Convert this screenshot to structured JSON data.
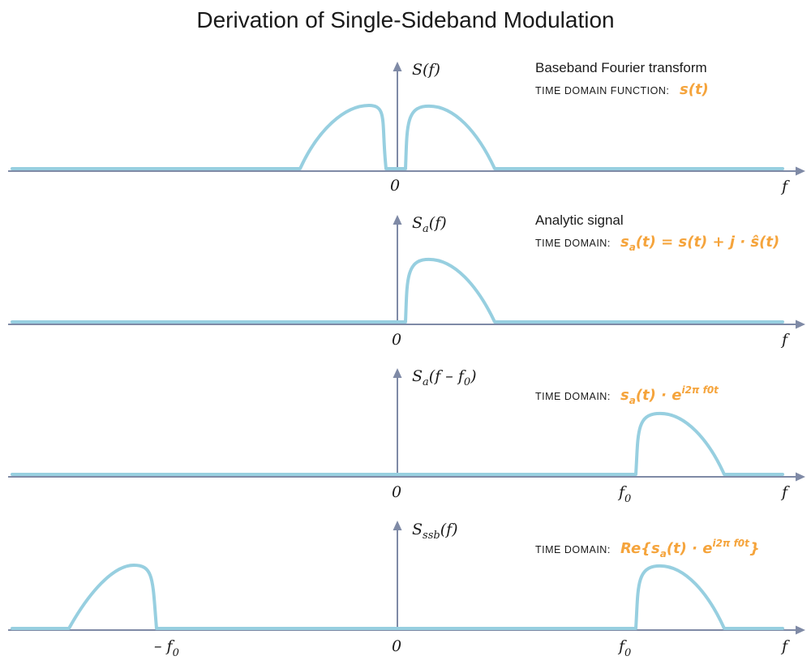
{
  "title": "Derivation of Single-Sideband Modulation",
  "axis": {
    "f_label": "f",
    "zero_label": "0",
    "f0_label": "f",
    "f0_sub": "0",
    "neg_f0_label": "– f",
    "neg_f0_sub": "0"
  },
  "panels": [
    {
      "ylabel": {
        "main": "S(f)",
        "sub": "",
        "rest": ""
      },
      "description": "Baseband Fourier transform",
      "time_domain_label": "TIME DOMAIN FUNCTION:",
      "formula": [
        {
          "t": "s(t)"
        }
      ]
    },
    {
      "ylabel": {
        "main": "S",
        "sub": "a",
        "rest": "(f)"
      },
      "description": "Analytic signal",
      "time_domain_label": "TIME DOMAIN:",
      "formula": [
        {
          "t": "s"
        },
        {
          "t": "a",
          "sub": true
        },
        {
          "t": "(t) = s(t) + j · ŝ(t)"
        }
      ]
    },
    {
      "ylabel": {
        "main": "S",
        "sub": "a",
        "rest": "(f – f",
        "sub2": "0",
        "rest2": ")"
      },
      "description": "",
      "time_domain_label": "TIME DOMAIN:",
      "formula": [
        {
          "t": "s"
        },
        {
          "t": "a",
          "sub": true
        },
        {
          "t": "(t) · e"
        },
        {
          "t": "i2π f0t",
          "sup": true
        }
      ]
    },
    {
      "ylabel": {
        "main": "S",
        "sub": "ssb",
        "rest": "(f)"
      },
      "description": "",
      "time_domain_label": "TIME DOMAIN:",
      "formula": [
        {
          "t": "Re{s"
        },
        {
          "t": "a",
          "sub": true
        },
        {
          "t": "(t) · e"
        },
        {
          "t": "i2π f0t",
          "sup": true
        },
        {
          "t": "}"
        }
      ]
    }
  ]
}
